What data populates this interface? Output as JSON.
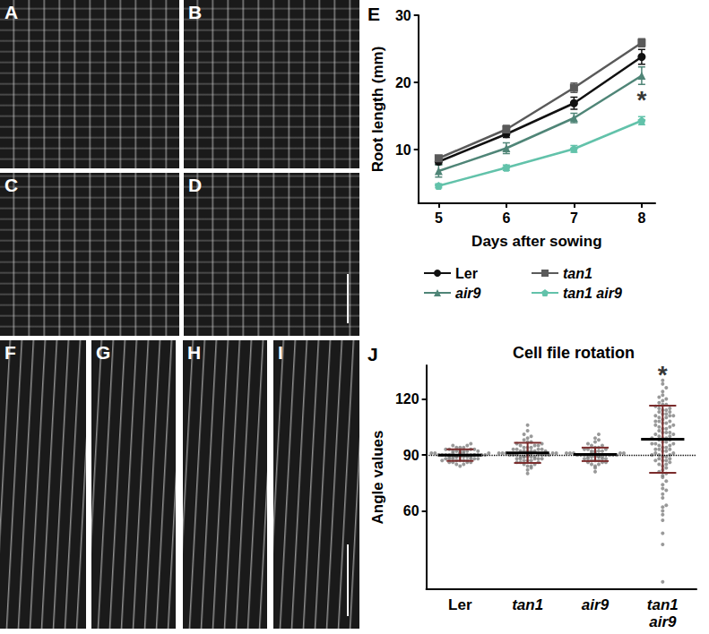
{
  "panels": {
    "image_panels": [
      "A",
      "B",
      "C",
      "D",
      "F",
      "G",
      "H",
      "I"
    ]
  },
  "chart_data": [
    {
      "panel": "E",
      "type": "line",
      "x_label": "Days after sowing",
      "y_label": "Root length (mm)",
      "x": [
        5,
        6,
        7,
        8
      ],
      "series": [
        {
          "name": "Ler",
          "color": "#111111",
          "marker": "circle",
          "values": [
            8.2,
            12.3,
            16.9,
            23.8
          ],
          "errors": [
            0.4,
            0.5,
            0.9,
            1.1
          ]
        },
        {
          "name": "tan1",
          "color": "#5a5a5a",
          "marker": "square",
          "values": [
            8.7,
            13.0,
            19.2,
            25.9
          ],
          "errors": [
            0.4,
            0.6,
            0.7,
            0.6
          ]
        },
        {
          "name": "air9",
          "color": "#4f8577",
          "marker": "triangle",
          "values": [
            6.8,
            10.2,
            14.7,
            21.0
          ],
          "errors": [
            0.9,
            0.8,
            0.7,
            1.3
          ]
        },
        {
          "name": "tan1 air9",
          "color": "#62c2aa",
          "marker": "pentagon",
          "values": [
            4.6,
            7.3,
            10.1,
            14.3
          ],
          "errors": [
            0.3,
            0.4,
            0.5,
            0.6
          ]
        }
      ],
      "xlim": [
        4.7,
        8.2
      ],
      "xticks": [
        5,
        6,
        7,
        8
      ],
      "ylim": [
        2,
        30
      ],
      "yticks": [
        10,
        20,
        30
      ],
      "grid": false,
      "annotations": [
        {
          "text": "*",
          "x": 8,
          "y": 17.4
        }
      ]
    },
    {
      "panel": "J",
      "type": "scatter",
      "title": "Cell file rotation",
      "y_label": "Angle values",
      "categories": [
        "Ler",
        "tan1",
        "air9",
        "tan1 air9"
      ],
      "color": "#7f7f7f",
      "values": [
        [
          84,
          85,
          85,
          86,
          86,
          86,
          87,
          87,
          87,
          87,
          88,
          88,
          88,
          88,
          88,
          89,
          89,
          89,
          89,
          89,
          89,
          90,
          90,
          90,
          90,
          90,
          90,
          90,
          90,
          91,
          91,
          91,
          91,
          91,
          91,
          92,
          92,
          92,
          92,
          92,
          93,
          93,
          93,
          93,
          94,
          94,
          94,
          95,
          95,
          96,
          89,
          90,
          88,
          91,
          90,
          89,
          92,
          87,
          86,
          90
        ],
        [
          80,
          82,
          83,
          84,
          84,
          85,
          85,
          86,
          86,
          86,
          87,
          87,
          87,
          88,
          88,
          88,
          88,
          89,
          89,
          89,
          89,
          89,
          90,
          90,
          90,
          90,
          90,
          90,
          90,
          91,
          91,
          91,
          91,
          91,
          91,
          92,
          92,
          92,
          92,
          92,
          93,
          93,
          93,
          93,
          94,
          94,
          94,
          95,
          95,
          95,
          96,
          96,
          97,
          97,
          98,
          99,
          100,
          101,
          103,
          106,
          90,
          91,
          89,
          92,
          88
        ],
        [
          81,
          83,
          84,
          85,
          85,
          86,
          86,
          86,
          87,
          87,
          87,
          88,
          88,
          88,
          88,
          89,
          89,
          89,
          89,
          89,
          90,
          90,
          90,
          90,
          90,
          90,
          90,
          91,
          91,
          91,
          91,
          91,
          91,
          92,
          92,
          92,
          92,
          93,
          93,
          93,
          94,
          94,
          95,
          95,
          96,
          97,
          98,
          99,
          101,
          90,
          89,
          91
        ],
        [
          22,
          42,
          48,
          55,
          58,
          60,
          62,
          63,
          67,
          69,
          71,
          72,
          74,
          76,
          78,
          79,
          80,
          81,
          82,
          83,
          84,
          85,
          85,
          86,
          87,
          87,
          88,
          88,
          89,
          89,
          90,
          90,
          91,
          91,
          92,
          92,
          93,
          93,
          94,
          94,
          95,
          95,
          96,
          96,
          97,
          97,
          98,
          98,
          99,
          99,
          100,
          100,
          101,
          101,
          102,
          102,
          103,
          104,
          104,
          105,
          105,
          106,
          106,
          107,
          107,
          108,
          108,
          109,
          110,
          110,
          111,
          111,
          112,
          112,
          113,
          113,
          114,
          114,
          115,
          115,
          116,
          117,
          117,
          118,
          119,
          120,
          121,
          122,
          124,
          126,
          128,
          130,
          96,
          99,
          102,
          93,
          90,
          108,
          111,
          87
        ]
      ],
      "means": [
        89.9,
        91.1,
        90.3,
        98.4
      ],
      "errors": [
        3.1,
        5.4,
        3.6,
        18.0
      ],
      "hline": 90,
      "ylim": [
        18,
        138
      ],
      "yticks": [
        60,
        90,
        120
      ],
      "grid": false,
      "annotations": [
        {
          "text": "*",
          "x": "tan1 air9",
          "y": 133
        }
      ]
    }
  ]
}
